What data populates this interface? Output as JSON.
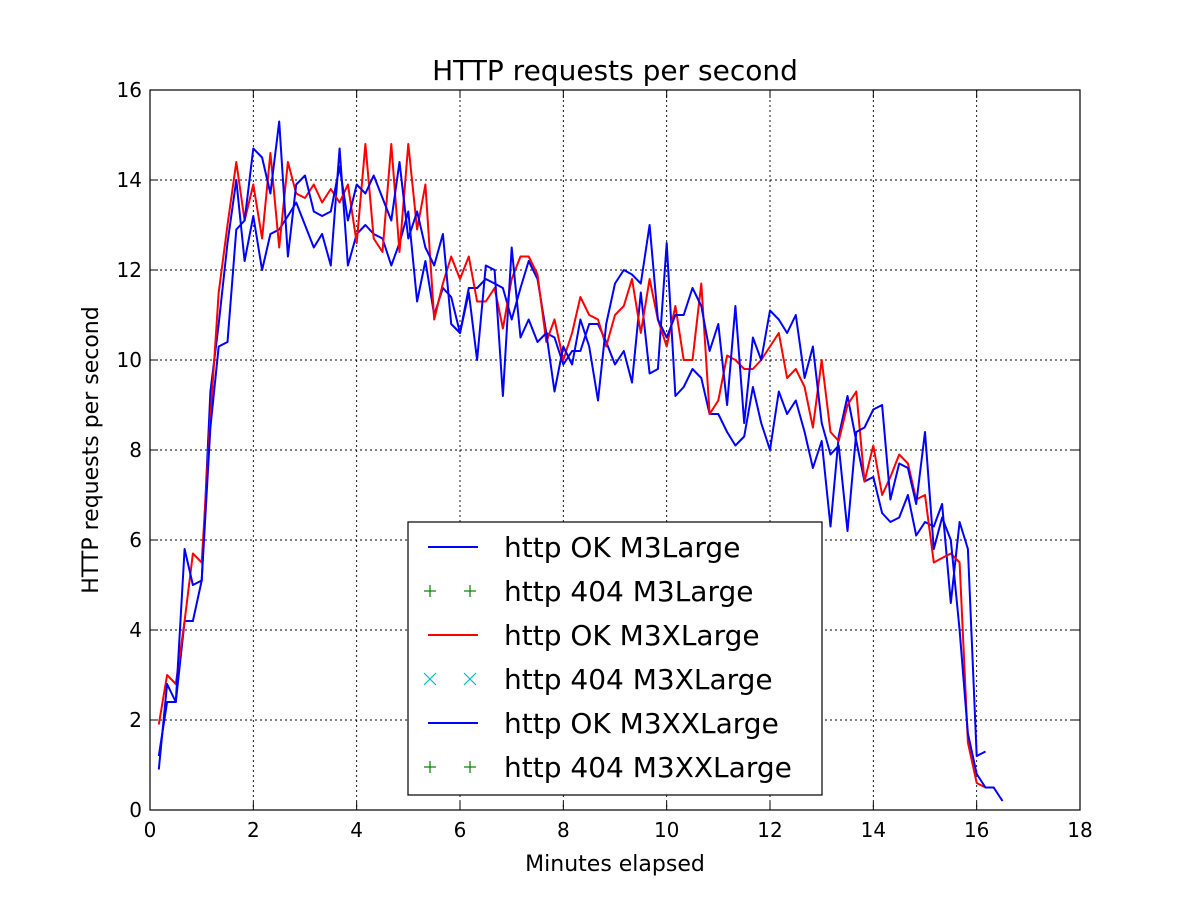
{
  "chart_data": {
    "type": "line",
    "title": "HTTP requests per second",
    "xlabel": "Minutes elapsed",
    "ylabel": "HTTP requests per second",
    "xlim": [
      0,
      18
    ],
    "ylim": [
      0,
      16
    ],
    "xticks": [
      "0",
      "2",
      "4",
      "6",
      "8",
      "10",
      "12",
      "14",
      "16",
      "18"
    ],
    "yticks": [
      "0",
      "2",
      "4",
      "6",
      "8",
      "10",
      "12",
      "14",
      "16"
    ],
    "grid": true,
    "legend_position": "lower-center",
    "series": [
      {
        "name": "http OK M3Large",
        "color": "#0000ff",
        "marker": "line",
        "x": [
          0.17,
          0.33,
          0.5,
          0.67,
          0.83,
          1.0,
          1.17,
          1.33,
          1.5,
          1.67,
          1.83,
          2.0,
          2.17,
          2.33,
          2.5,
          2.67,
          2.83,
          3.0,
          3.17,
          3.33,
          3.5,
          3.67,
          3.83,
          4.0,
          4.17,
          4.33,
          4.5,
          4.67,
          4.83,
          5.0,
          5.17,
          5.33,
          5.5,
          5.67,
          5.83,
          6.0,
          6.17,
          6.33,
          6.5,
          6.67,
          6.83,
          7.0,
          7.17,
          7.33,
          7.5,
          7.67,
          7.83,
          8.0,
          8.17,
          8.33,
          8.5,
          8.67,
          8.83,
          9.0,
          9.17,
          9.33,
          9.5,
          9.67,
          9.83,
          10.0,
          10.17,
          10.33,
          10.5,
          10.67,
          10.83,
          11.0,
          11.17,
          11.33,
          11.5,
          11.67,
          11.83,
          12.0,
          12.17,
          12.33,
          12.5,
          12.67,
          12.83,
          13.0,
          13.17,
          13.33,
          13.5,
          13.67,
          13.83,
          14.0,
          14.17,
          14.33,
          14.5,
          14.67,
          14.83,
          15.0,
          15.17,
          15.33,
          15.5,
          15.67,
          15.83,
          16.0,
          16.17
        ],
        "y": [
          1.2,
          2.4,
          2.4,
          4.2,
          4.2,
          5.1,
          9.3,
          10.8,
          12.6,
          14.0,
          12.2,
          13.2,
          12.0,
          12.8,
          12.9,
          13.2,
          13.5,
          13.0,
          12.5,
          12.8,
          12.1,
          14.7,
          12.1,
          12.8,
          13.0,
          12.8,
          12.7,
          12.1,
          12.6,
          13.3,
          11.3,
          12.2,
          11.0,
          11.6,
          11.4,
          10.6,
          11.6,
          11.6,
          11.8,
          11.7,
          11.6,
          10.9,
          11.6,
          12.2,
          11.8,
          10.6,
          10.5,
          9.9,
          10.2,
          10.2,
          10.8,
          10.8,
          10.4,
          9.9,
          10.2,
          9.5,
          11.5,
          9.7,
          9.8,
          12.6,
          9.2,
          9.4,
          9.8,
          9.6,
          8.8,
          8.8,
          8.4,
          8.1,
          8.3,
          9.4,
          8.6,
          8.0,
          9.3,
          8.8,
          9.1,
          8.4,
          7.6,
          8.2,
          6.3,
          8.3,
          9.2,
          8.2,
          7.3,
          7.4,
          6.6,
          6.4,
          6.5,
          7.0,
          6.1,
          6.4,
          6.3,
          6.8,
          4.6,
          6.4,
          5.8,
          1.2,
          1.3
        ]
      },
      {
        "name": "http 404 M3Large",
        "color": "#008000",
        "marker": "plus",
        "x": [],
        "y": []
      },
      {
        "name": "http OK M3XLarge",
        "color": "#ff0000",
        "marker": "line",
        "x": [
          0.17,
          0.33,
          0.5,
          0.67,
          0.83,
          1.0,
          1.17,
          1.33,
          1.5,
          1.67,
          1.83,
          2.0,
          2.17,
          2.33,
          2.5,
          2.67,
          2.83,
          3.0,
          3.17,
          3.33,
          3.5,
          3.67,
          3.83,
          4.0,
          4.17,
          4.33,
          4.5,
          4.67,
          4.83,
          5.0,
          5.17,
          5.33,
          5.5,
          5.67,
          5.83,
          6.0,
          6.17,
          6.33,
          6.5,
          6.67,
          6.83,
          7.0,
          7.17,
          7.33,
          7.5,
          7.67,
          7.83,
          8.0,
          8.17,
          8.33,
          8.5,
          8.67,
          8.83,
          9.0,
          9.17,
          9.33,
          9.5,
          9.67,
          9.83,
          10.0,
          10.17,
          10.33,
          10.5,
          10.67,
          10.83,
          11.0,
          11.17,
          11.33,
          11.5,
          11.67,
          11.83,
          12.0,
          12.17,
          12.33,
          12.5,
          12.67,
          12.83,
          13.0,
          13.17,
          13.33,
          13.5,
          13.67,
          13.83,
          14.0,
          14.17,
          14.33,
          14.5,
          14.67,
          14.83,
          15.0,
          15.17,
          15.33,
          15.5,
          15.67,
          15.83,
          16.0,
          16.17
        ],
        "y": [
          1.9,
          3.0,
          2.8,
          4.2,
          5.7,
          5.5,
          8.7,
          11.5,
          13.0,
          14.4,
          13.1,
          13.9,
          12.7,
          14.6,
          12.5,
          14.4,
          13.7,
          13.6,
          13.9,
          13.5,
          13.8,
          13.5,
          13.9,
          12.6,
          14.8,
          12.7,
          12.4,
          14.8,
          12.4,
          14.8,
          12.9,
          13.9,
          10.9,
          11.7,
          12.3,
          11.8,
          12.3,
          11.3,
          11.3,
          11.6,
          10.7,
          11.8,
          12.3,
          12.3,
          11.9,
          10.4,
          10.9,
          10.0,
          10.6,
          11.4,
          11.0,
          10.9,
          10.3,
          11.0,
          11.2,
          11.8,
          10.6,
          11.8,
          10.9,
          10.3,
          11.2,
          10.0,
          10.0,
          11.7,
          8.8,
          9.1,
          10.1,
          10.0,
          9.8,
          9.8,
          10.0,
          10.3,
          10.6,
          9.6,
          9.8,
          9.4,
          8.5,
          10.0,
          8.4,
          8.2,
          9.0,
          9.3,
          7.3,
          8.1,
          7.0,
          7.4,
          7.9,
          7.7,
          6.9,
          7.0,
          5.5,
          5.6,
          5.7,
          5.5,
          1.5,
          0.6,
          0.5
        ]
      },
      {
        "name": "http 404 M3XLarge",
        "color": "#00bfbf",
        "marker": "x",
        "x": [],
        "y": []
      },
      {
        "name": "http OK M3XXLarge",
        "color": "#0000ff",
        "marker": "line",
        "x": [
          0.17,
          0.33,
          0.5,
          0.67,
          0.83,
          1.0,
          1.17,
          1.33,
          1.5,
          1.67,
          1.83,
          2.0,
          2.17,
          2.33,
          2.5,
          2.67,
          2.83,
          3.0,
          3.17,
          3.33,
          3.5,
          3.67,
          3.83,
          4.0,
          4.17,
          4.33,
          4.5,
          4.67,
          4.83,
          5.0,
          5.17,
          5.33,
          5.5,
          5.67,
          5.83,
          6.0,
          6.17,
          6.33,
          6.5,
          6.67,
          6.83,
          7.0,
          7.17,
          7.33,
          7.5,
          7.67,
          7.83,
          8.0,
          8.17,
          8.33,
          8.5,
          8.67,
          8.83,
          9.0,
          9.17,
          9.33,
          9.5,
          9.67,
          9.83,
          10.0,
          10.17,
          10.33,
          10.5,
          10.67,
          10.83,
          11.0,
          11.17,
          11.33,
          11.5,
          11.67,
          11.83,
          12.0,
          12.17,
          12.33,
          12.5,
          12.67,
          12.83,
          13.0,
          13.17,
          13.33,
          13.5,
          13.67,
          13.83,
          14.0,
          14.17,
          14.33,
          14.5,
          14.67,
          14.83,
          15.0,
          15.17,
          15.33,
          15.5,
          15.67,
          15.83,
          16.0,
          16.17,
          16.33,
          16.5
        ],
        "y": [
          0.9,
          2.8,
          2.4,
          5.8,
          5.0,
          5.1,
          8.5,
          10.3,
          10.4,
          12.9,
          13.1,
          14.7,
          14.5,
          13.7,
          15.3,
          12.3,
          13.9,
          14.1,
          13.3,
          13.2,
          13.3,
          14.3,
          13.1,
          13.9,
          13.7,
          14.1,
          13.6,
          13.1,
          14.4,
          12.7,
          13.3,
          12.5,
          12.1,
          12.8,
          10.8,
          10.6,
          11.5,
          10.0,
          12.1,
          12.0,
          9.2,
          12.5,
          10.5,
          10.9,
          10.4,
          10.6,
          9.3,
          10.3,
          9.9,
          10.9,
          10.3,
          9.1,
          10.8,
          11.7,
          12.0,
          11.9,
          11.7,
          13.0,
          10.9,
          10.5,
          11.0,
          11.0,
          11.6,
          11.2,
          10.2,
          10.8,
          9.0,
          11.2,
          8.6,
          10.5,
          10.0,
          11.1,
          10.9,
          10.6,
          11.0,
          9.6,
          10.3,
          8.6,
          7.9,
          8.1,
          6.2,
          8.4,
          8.5,
          8.9,
          9.0,
          6.9,
          7.7,
          7.6,
          6.8,
          8.4,
          5.8,
          6.5,
          6.0,
          4.0,
          1.7,
          0.8,
          0.5,
          0.5,
          0.2
        ]
      },
      {
        "name": "http 404 M3XXLarge",
        "color": "#008000",
        "marker": "plus",
        "x": [],
        "y": []
      }
    ]
  }
}
